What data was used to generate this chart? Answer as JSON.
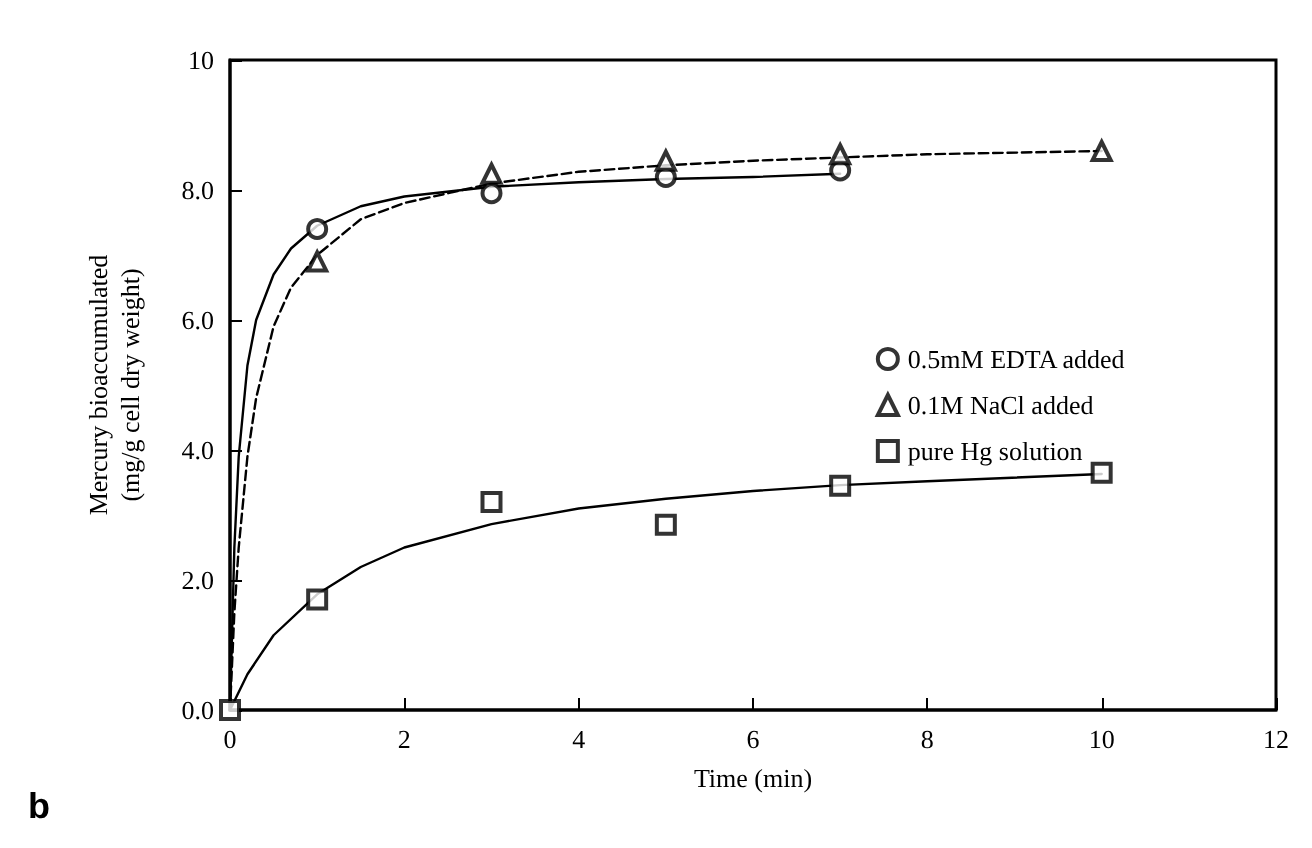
{
  "chart_data": {
    "type": "scatter",
    "xlabel": "Time (min)",
    "ylabel": "Mercury bioaccumulated\n(mg/g cell dry weight)",
    "xlim": [
      0,
      12
    ],
    "xticks": [
      0,
      2,
      4,
      6,
      8,
      10,
      12
    ],
    "ylim": [
      0,
      10
    ],
    "yticks": [
      {
        "value": 0,
        "label": "0.0"
      },
      {
        "value": 2,
        "label": "2.0"
      },
      {
        "value": 4,
        "label": "4.0"
      },
      {
        "value": 6,
        "label": "6.0"
      },
      {
        "value": 8,
        "label": "8.0"
      },
      10
    ],
    "grid": false,
    "legend": "right",
    "annotations": [
      "b"
    ],
    "series": [
      {
        "name": "0.5mM EDTA added",
        "marker": "circle",
        "color": "#000000",
        "x": [
          1,
          3,
          5,
          7
        ],
        "values": [
          7.4,
          7.95,
          8.2,
          8.3
        ]
      },
      {
        "name": "0.1M NaCl added",
        "marker": "triangle",
        "color": "#000000",
        "x": [
          1,
          3,
          5,
          7,
          10
        ],
        "values": [
          6.9,
          8.25,
          8.45,
          8.55,
          8.6
        ]
      },
      {
        "name": "pure Hg solution",
        "marker": "square",
        "color": "#000000",
        "x": [
          0,
          1,
          3,
          5,
          7,
          10
        ],
        "values": [
          0,
          1.7,
          3.2,
          2.85,
          3.45,
          3.65
        ]
      },
      {
        "type": "line",
        "line_style": "solid",
        "marker": "none",
        "color": "#000000",
        "x": [
          0,
          0.05,
          0.1,
          0.2,
          0.3,
          0.5,
          0.7,
          1,
          1.5,
          2,
          3,
          4,
          5,
          6,
          7
        ],
        "values": [
          0,
          2.5,
          3.9,
          5.3,
          6.0,
          6.7,
          7.1,
          7.45,
          7.75,
          7.9,
          8.05,
          8.12,
          8.17,
          8.2,
          8.25
        ]
      },
      {
        "type": "line",
        "line_style": "dashed",
        "marker": "none",
        "color": "#000000",
        "x": [
          0,
          0.05,
          0.1,
          0.2,
          0.3,
          0.5,
          0.7,
          1,
          1.5,
          2,
          3,
          4,
          5,
          6,
          7,
          8,
          10
        ],
        "values": [
          0,
          1.5,
          2.5,
          3.9,
          4.8,
          5.9,
          6.5,
          7.0,
          7.55,
          7.8,
          8.1,
          8.28,
          8.38,
          8.45,
          8.5,
          8.55,
          8.6
        ]
      },
      {
        "type": "line",
        "line_style": "solid",
        "marker": "none",
        "color": "#000000",
        "x": [
          0,
          0.2,
          0.5,
          1,
          1.5,
          2,
          3,
          4,
          5,
          6,
          7,
          8,
          10
        ],
        "values": [
          0,
          0.55,
          1.15,
          1.78,
          2.2,
          2.5,
          2.86,
          3.1,
          3.25,
          3.37,
          3.46,
          3.52,
          3.63
        ]
      }
    ]
  }
}
